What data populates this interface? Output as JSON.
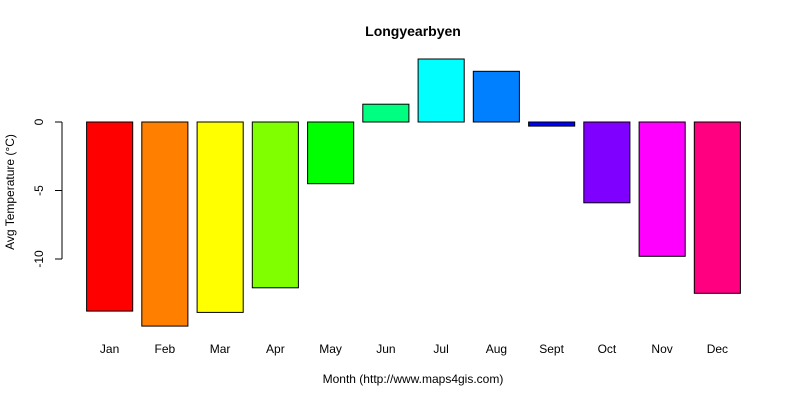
{
  "chart_data": {
    "type": "bar",
    "title": "Longyearbyen",
    "xlabel": "Month (http://www.maps4gis.com)",
    "ylabel": "Avg Temperature (°C)",
    "categories": [
      "Jan",
      "Feb",
      "Mar",
      "Apr",
      "May",
      "Jun",
      "Jul",
      "Aug",
      "Sept",
      "Oct",
      "Nov",
      "Dec"
    ],
    "values": [
      -13.8,
      -14.9,
      -13.9,
      -12.1,
      -4.5,
      1.3,
      4.6,
      3.7,
      -0.3,
      -5.9,
      -9.8,
      -12.5
    ],
    "colors": [
      "#ff0000",
      "#ff8000",
      "#ffff00",
      "#80ff00",
      "#00ff00",
      "#00ff80",
      "#00ffff",
      "#0080ff",
      "#0000ff",
      "#8000ff",
      "#ff00ff",
      "#ff0080"
    ],
    "ylim": [
      -15.5,
      5
    ],
    "yticks": [
      0,
      -5,
      -10
    ],
    "grid": false,
    "legend": "none"
  }
}
